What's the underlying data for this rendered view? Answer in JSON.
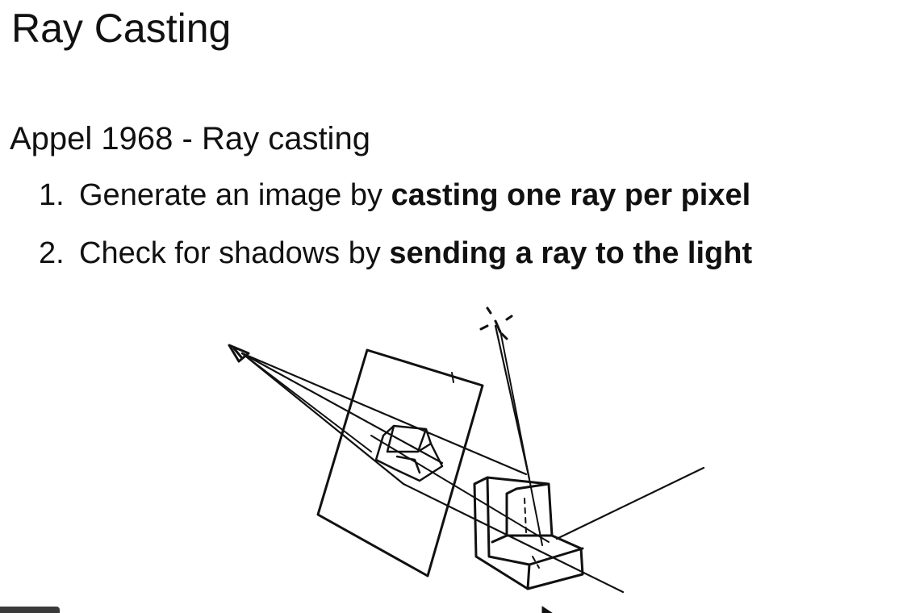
{
  "slide": {
    "title": "Ray Casting",
    "intro": "Appel 1968 - Ray casting",
    "steps": [
      {
        "number": "1.",
        "text_plain": "Generate an image by ",
        "text_bold": "casting one ray per pixel"
      },
      {
        "number": "2.",
        "text_plain": "Check for shadows by ",
        "text_bold": "sending a ray to the light"
      }
    ]
  },
  "figure": {
    "description_icon": "ray-casting-sketch"
  }
}
